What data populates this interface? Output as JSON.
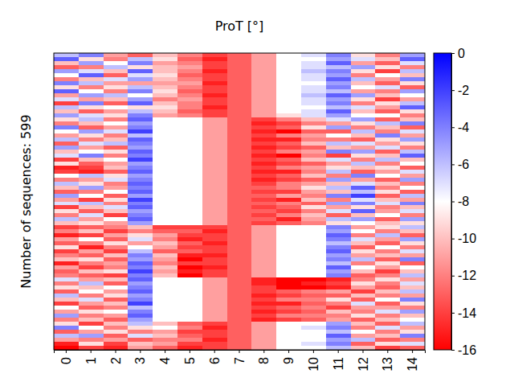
{
  "chart_data": {
    "type": "heatmap",
    "title": "ProT [°]",
    "y_label": "Number of sequences: 599",
    "categories": [
      "0",
      "1",
      "2",
      "3",
      "4",
      "5",
      "6",
      "7",
      "8",
      "9",
      "10",
      "11",
      "12",
      "13",
      "14"
    ],
    "tick_labels": "x",
    "zlim": [
      -16,
      0
    ],
    "zticks": [
      0,
      -2,
      -4,
      -6,
      -8,
      -10,
      -12,
      -14,
      -16
    ],
    "z": [
      [
        -6,
        -4,
        -11,
        -13,
        -10,
        -12,
        -14,
        -13,
        -11,
        -8,
        -7,
        -4,
        -9,
        -12,
        -5
      ],
      [
        -3,
        -9,
        -12,
        -6,
        -9,
        -13,
        -15,
        -13,
        -11,
        -8,
        -8,
        -5,
        -7,
        -10,
        -3
      ],
      [
        -10,
        -5,
        -8,
        -4,
        -11,
        -12,
        -14,
        -13,
        -11,
        -8,
        -7,
        -3,
        -11,
        -13,
        -7
      ],
      [
        -13,
        -12,
        -6,
        -9,
        -10,
        -11,
        -14,
        -13,
        -11,
        -8,
        -7,
        -6,
        -5,
        -9,
        -12
      ],
      [
        -5,
        -7,
        -10,
        -3,
        -10,
        -12,
        -15,
        -13,
        -11,
        -8,
        -6,
        -4,
        -9,
        -14,
        -6
      ],
      [
        -8,
        -3,
        -13,
        -7,
        -9,
        -13,
        -14,
        -13,
        -11,
        -8,
        -7,
        -5,
        -12,
        -8,
        -10
      ],
      [
        -12,
        -10,
        -7,
        -5,
        -10,
        -12,
        -14,
        -13,
        -11,
        -8,
        -7,
        -3,
        -6,
        -11,
        -4
      ],
      [
        -4,
        -6,
        -11,
        -11,
        -11,
        -11,
        -15,
        -13,
        -11,
        -8,
        -8,
        -5,
        -10,
        -13,
        -9
      ],
      [
        -9,
        -12,
        -9,
        -6,
        -10,
        -12,
        -14,
        -13,
        -11,
        -8,
        -7,
        -4,
        -8,
        -7,
        -13
      ],
      [
        -3,
        -8,
        -12,
        -4,
        -9,
        -13,
        -14,
        -13,
        -11,
        -8,
        -7,
        -6,
        -11,
        -12,
        -5
      ],
      [
        -11,
        -5,
        -6,
        -8,
        -10,
        -12,
        -15,
        -13,
        -11,
        -8,
        -6,
        -3,
        -5,
        -10,
        -8
      ],
      [
        -7,
        -11,
        -10,
        -5,
        -12,
        -11,
        -14,
        -13,
        -11,
        -8,
        -7,
        -5,
        -9,
        -14,
        -11
      ],
      [
        -14,
        -4,
        -13,
        -3,
        -10,
        -12,
        -14,
        -13,
        -11,
        -8,
        -7,
        -4,
        -12,
        -9,
        -6
      ],
      [
        -6,
        -9,
        -8,
        -9,
        -9,
        -12,
        -15,
        -13,
        -11,
        -8,
        -8,
        -6,
        -7,
        -11,
        -3
      ],
      [
        -10,
        -13,
        -11,
        -6,
        -10,
        -13,
        -14,
        -13,
        -11,
        -8,
        -7,
        -3,
        -10,
        -13,
        -9
      ],
      [
        -5,
        -7,
        -9,
        -4,
        -11,
        -12,
        -14,
        -13,
        -11,
        -9,
        -7,
        -5,
        -8,
        -8,
        -12
      ],
      [
        -9,
        -6,
        -12,
        -3,
        -8,
        -8,
        -11,
        -13,
        -14,
        -12,
        -10,
        -7,
        -5,
        -13,
        -10
      ],
      [
        -12,
        -10,
        -8,
        -5,
        -8,
        -8,
        -11,
        -13,
        -15,
        -14,
        -12,
        -11,
        -9,
        -6,
        -4
      ],
      [
        -4,
        -13,
        -11,
        -4,
        -8,
        -8,
        -11,
        -13,
        -14,
        -13,
        -9,
        -5,
        -12,
        -10,
        -13
      ],
      [
        -8,
        -5,
        -7,
        -2,
        -8,
        -8,
        -11,
        -13,
        -15,
        -16,
        -13,
        -13,
        -6,
        -12,
        -7
      ],
      [
        -11,
        -9,
        -12,
        -6,
        -8,
        -8,
        -11,
        -13,
        -14,
        -12,
        -11,
        -8,
        -10,
        -4,
        -11
      ],
      [
        -6,
        -12,
        -10,
        -3,
        -8,
        -8,
        -11,
        -13,
        -15,
        -15,
        -12,
        -12,
        -13,
        -9,
        -5
      ],
      [
        -13,
        -7,
        -6,
        -4,
        -8,
        -8,
        -11,
        -13,
        -14,
        -13,
        -10,
        -6,
        -7,
        -11,
        -9
      ],
      [
        -5,
        -11,
        -13,
        -5,
        -8,
        -8,
        -11,
        -13,
        -15,
        -14,
        -13,
        -10,
        -11,
        -7,
        -12
      ],
      [
        -10,
        -8,
        -9,
        -3,
        -8,
        -8,
        -11,
        -13,
        -14,
        -12,
        -11,
        -4,
        -5,
        -13,
        -6
      ],
      [
        -7,
        -4,
        -12,
        -4,
        -8,
        -8,
        -11,
        -13,
        -15,
        -16,
        -12,
        -14,
        -9,
        -10,
        -3
      ],
      [
        -14,
        -10,
        -8,
        -2,
        -8,
        -8,
        -11,
        -13,
        -14,
        -13,
        -10,
        -7,
        -12,
        -6,
        -10
      ],
      [
        -9,
        -13,
        -11,
        -5,
        -8,
        -8,
        -11,
        -13,
        -15,
        -14,
        -13,
        -11,
        -6,
        -12,
        -8
      ],
      [
        -15,
        -14,
        -10,
        -4,
        -8,
        -8,
        -11,
        -13,
        -14,
        -12,
        -11,
        -9,
        -10,
        -9,
        -13
      ],
      [
        -14,
        -15,
        -13,
        -3,
        -8,
        -8,
        -11,
        -13,
        -15,
        -15,
        -12,
        -6,
        -13,
        -11,
        -7
      ],
      [
        -8,
        -6,
        -9,
        -5,
        -8,
        -8,
        -11,
        -13,
        -14,
        -13,
        -10,
        -12,
        -4,
        -8,
        -11
      ],
      [
        -12,
        -11,
        -7,
        -4,
        -8,
        -8,
        -11,
        -13,
        -15,
        -14,
        -13,
        -5,
        -11,
        -13,
        -5
      ],
      [
        -6,
        -9,
        -12,
        -3,
        -8,
        -8,
        -11,
        -13,
        -14,
        -12,
        -11,
        -10,
        -7,
        -10,
        -12
      ],
      [
        -10,
        -5,
        -11,
        -4,
        -8,
        -8,
        -11,
        -13,
        -13,
        -12,
        -9,
        -6,
        -3,
        -12,
        -8
      ],
      [
        -13,
        -12,
        -8,
        -3,
        -8,
        -8,
        -11,
        -13,
        -14,
        -14,
        -11,
        -10,
        -6,
        -9,
        -13
      ],
      [
        -5,
        -8,
        -13,
        -5,
        -8,
        -8,
        -11,
        -13,
        -13,
        -11,
        -12,
        -4,
        -2,
        -13,
        -6
      ],
      [
        -11,
        -14,
        -9,
        -2,
        -8,
        -8,
        -11,
        -13,
        -14,
        -15,
        -10,
        -12,
        -7,
        -10,
        -11
      ],
      [
        -7,
        -6,
        -12,
        -4,
        -8,
        -8,
        -11,
        -13,
        -13,
        -12,
        -13,
        -5,
        -4,
        -7,
        -4
      ],
      [
        -14,
        -10,
        -7,
        -3,
        -8,
        -8,
        -11,
        -13,
        -14,
        -13,
        -9,
        -11,
        -9,
        -12,
        -10
      ],
      [
        -9,
        -13,
        -10,
        -5,
        -8,
        -8,
        -11,
        -13,
        -13,
        -14,
        -12,
        -7,
        -3,
        -11,
        -7
      ],
      [
        -12,
        -7,
        -14,
        -4,
        -8,
        -8,
        -11,
        -13,
        -14,
        -12,
        -10,
        -13,
        -10,
        -8,
        -12
      ],
      [
        -6,
        -11,
        -8,
        -3,
        -8,
        -8,
        -11,
        -13,
        -13,
        -15,
        -11,
        -6,
        -5,
        -13,
        -5
      ],
      [
        -10,
        -9,
        -11,
        -5,
        -8,
        -8,
        -11,
        -13,
        -14,
        -13,
        -12,
        -9,
        -8,
        -10,
        -9
      ],
      [
        -14,
        -13,
        -12,
        -10,
        -14,
        -14,
        -14,
        -13,
        -11,
        -8,
        -8,
        -4,
        -11,
        -9,
        -6
      ],
      [
        -12,
        -10,
        -14,
        -12,
        -13,
        -13,
        -15,
        -13,
        -11,
        -8,
        -8,
        -5,
        -8,
        -12,
        -10
      ],
      [
        -15,
        -14,
        -11,
        -9,
        -11,
        -14,
        -14,
        -13,
        -11,
        -8,
        -8,
        -3,
        -12,
        -6,
        -13
      ],
      [
        -11,
        -8,
        -13,
        -7,
        -12,
        -15,
        -14,
        -13,
        -11,
        -8,
        -8,
        -4,
        -7,
        -11,
        -5
      ],
      [
        -13,
        -12,
        -9,
        -11,
        -10,
        -13,
        -15,
        -13,
        -11,
        -8,
        -8,
        -6,
        -10,
        -13,
        -9
      ],
      [
        -9,
        -15,
        -12,
        -8,
        -11,
        -14,
        -14,
        -13,
        -11,
        -8,
        -8,
        -4,
        -13,
        -8,
        -12
      ],
      [
        -14,
        -11,
        -14,
        -6,
        -13,
        -13,
        -14,
        -13,
        -11,
        -8,
        -8,
        -3,
        -9,
        -12,
        -7
      ],
      [
        -12,
        -13,
        -10,
        -4,
        -10,
        -15,
        -15,
        -13,
        -11,
        -8,
        -8,
        -5,
        -11,
        -10,
        -11
      ],
      [
        -10,
        -9,
        -13,
        -5,
        -11,
        -16,
        -14,
        -13,
        -11,
        -8,
        -8,
        -4,
        -6,
        -13,
        -4
      ],
      [
        -15,
        -12,
        -11,
        -3,
        -12,
        -14,
        -14,
        -13,
        -11,
        -8,
        -8,
        -6,
        -12,
        -9,
        -13
      ],
      [
        -11,
        -14,
        -12,
        -4,
        -10,
        -16,
        -15,
        -13,
        -11,
        -8,
        -8,
        -3,
        -8,
        -11,
        -8
      ],
      [
        -13,
        -10,
        -9,
        -2,
        -11,
        -15,
        -14,
        -13,
        -11,
        -8,
        -8,
        -5,
        -10,
        -14,
        -10
      ],
      [
        -12,
        -13,
        -14,
        -4,
        -10,
        -16,
        -14,
        -13,
        -11,
        -8,
        -8,
        -4,
        -13,
        -12,
        -6
      ],
      [
        -7,
        -11,
        -10,
        -3,
        -8,
        -8,
        -11,
        -13,
        -15,
        -16,
        -16,
        -15,
        -12,
        -9,
        -11
      ],
      [
        -12,
        -6,
        -13,
        -5,
        -8,
        -8,
        -11,
        -13,
        -15,
        -16,
        -15,
        -14,
        -9,
        -12,
        -7
      ],
      [
        -9,
        -10,
        -8,
        -4,
        -8,
        -8,
        -11,
        -13,
        -14,
        -16,
        -16,
        -15,
        -11,
        -13,
        -10
      ],
      [
        -13,
        -8,
        -11,
        -3,
        -8,
        -8,
        -11,
        -13,
        -14,
        -13,
        -12,
        -11,
        -14,
        -10,
        -6
      ],
      [
        -6,
        -12,
        -9,
        -5,
        -8,
        -8,
        -11,
        -13,
        -15,
        -14,
        -13,
        -13,
        -10,
        -12,
        -11
      ],
      [
        -10,
        -7,
        -13,
        -4,
        -8,
        -8,
        -11,
        -13,
        -14,
        -12,
        -12,
        -9,
        -13,
        -8,
        -4
      ],
      [
        -14,
        -11,
        -10,
        -2,
        -8,
        -8,
        -11,
        -13,
        -15,
        -15,
        -13,
        -12,
        -7,
        -13,
        -9
      ],
      [
        -8,
        -13,
        -12,
        -6,
        -8,
        -8,
        -11,
        -13,
        -14,
        -13,
        -12,
        -14,
        -11,
        -11,
        -12
      ],
      [
        -11,
        -9,
        -8,
        -4,
        -8,
        -8,
        -11,
        -13,
        -15,
        -14,
        -13,
        -10,
        -12,
        -7,
        -5
      ],
      [
        -5,
        -12,
        -11,
        -3,
        -8,
        -8,
        -11,
        -13,
        -14,
        -12,
        -12,
        -12,
        -9,
        -12,
        -10
      ],
      [
        -12,
        -10,
        -13,
        -5,
        -8,
        -8,
        -11,
        -13,
        -15,
        -14,
        -13,
        -11,
        -13,
        -10,
        -8
      ],
      [
        -9,
        -14,
        -10,
        -6,
        -10,
        -13,
        -14,
        -13,
        -11,
        -8,
        -8,
        -5,
        -10,
        -13,
        -6
      ],
      [
        -4,
        -8,
        -12,
        -9,
        -8,
        -12,
        -15,
        -13,
        -11,
        -8,
        -7,
        -4,
        -12,
        -7,
        -11
      ],
      [
        -13,
        -11,
        -9,
        -12,
        -11,
        -14,
        -14,
        -13,
        -11,
        -8,
        -8,
        -6,
        -8,
        -12,
        -9
      ],
      [
        -6,
        -5,
        -13,
        -7,
        -10,
        -13,
        -14,
        -13,
        -11,
        -8,
        -8,
        -3,
        -11,
        -10,
        -4
      ],
      [
        -11,
        -12,
        -11,
        -13,
        -12,
        -12,
        -15,
        -13,
        -11,
        -8,
        -8,
        -5,
        -6,
        -13,
        -12
      ],
      [
        -15,
        -9,
        -14,
        -10,
        -11,
        -14,
        -14,
        -13,
        -11,
        -8,
        -7,
        -4,
        -13,
        -9,
        -7
      ],
      [
        -16,
        -14,
        -15,
        -11,
        -13,
        -15,
        -14,
        -13,
        -11,
        -8,
        -8,
        -6,
        -10,
        -14,
        -13
      ]
    ]
  }
}
